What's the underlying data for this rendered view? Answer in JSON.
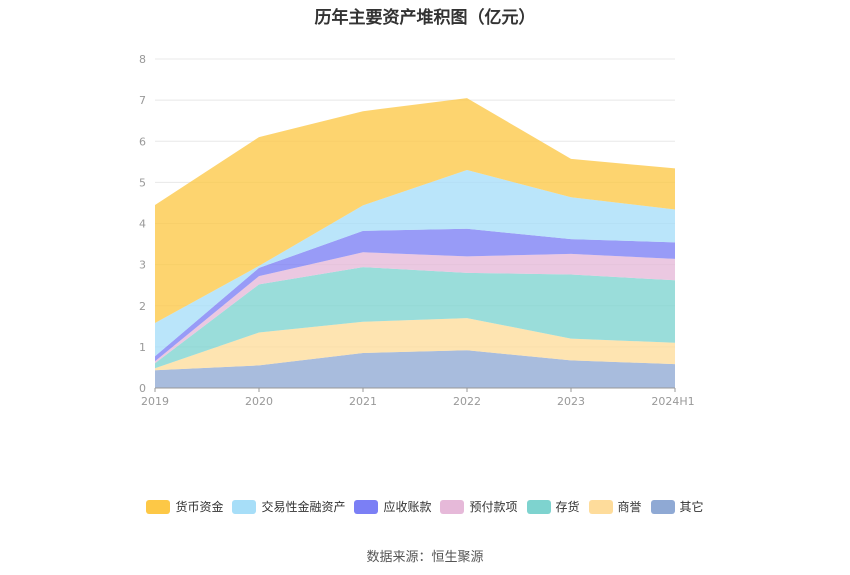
{
  "chart_data": {
    "type": "area",
    "title": "历年主要资产堆积图（亿元）",
    "categories": [
      "2019",
      "2020",
      "2021",
      "2022",
      "2023",
      "2024H1"
    ],
    "ylim": [
      0,
      8
    ],
    "yticks": [
      "0",
      "1",
      "2",
      "3",
      "4",
      "5",
      "6",
      "7",
      "8"
    ],
    "grid": true,
    "legend_position": "bottom",
    "stacked": true,
    "series": [
      {
        "name": "其它",
        "color": "#8fa9d4",
        "values": [
          0.43,
          0.55,
          0.85,
          0.92,
          0.67,
          0.58
        ]
      },
      {
        "name": "商誉",
        "color": "#fedc9b",
        "values": [
          0.05,
          0.8,
          0.76,
          0.78,
          0.53,
          0.52
        ]
      },
      {
        "name": "存货",
        "color": "#7ed3cf",
        "values": [
          0.12,
          1.17,
          1.33,
          1.1,
          1.56,
          1.52
        ]
      },
      {
        "name": "预付款项",
        "color": "#e6b9d9",
        "values": [
          0.05,
          0.2,
          0.36,
          0.4,
          0.5,
          0.52
        ]
      },
      {
        "name": "应收账款",
        "color": "#7b7ff5",
        "values": [
          0.12,
          0.2,
          0.52,
          0.67,
          0.36,
          0.4
        ]
      },
      {
        "name": "交易性金融资产",
        "color": "#a7def8",
        "values": [
          0.81,
          0.05,
          0.62,
          1.43,
          1.02,
          0.8
        ]
      },
      {
        "name": "货币资金",
        "color": "#fdc846",
        "values": [
          2.87,
          3.13,
          2.29,
          1.75,
          0.93,
          1.0
        ]
      }
    ]
  },
  "legend_order": [
    "货币资金",
    "交易性金融资产",
    "应收账款",
    "预付款项",
    "存货",
    "商誉",
    "其它"
  ],
  "source": "数据来源：恒生聚源"
}
